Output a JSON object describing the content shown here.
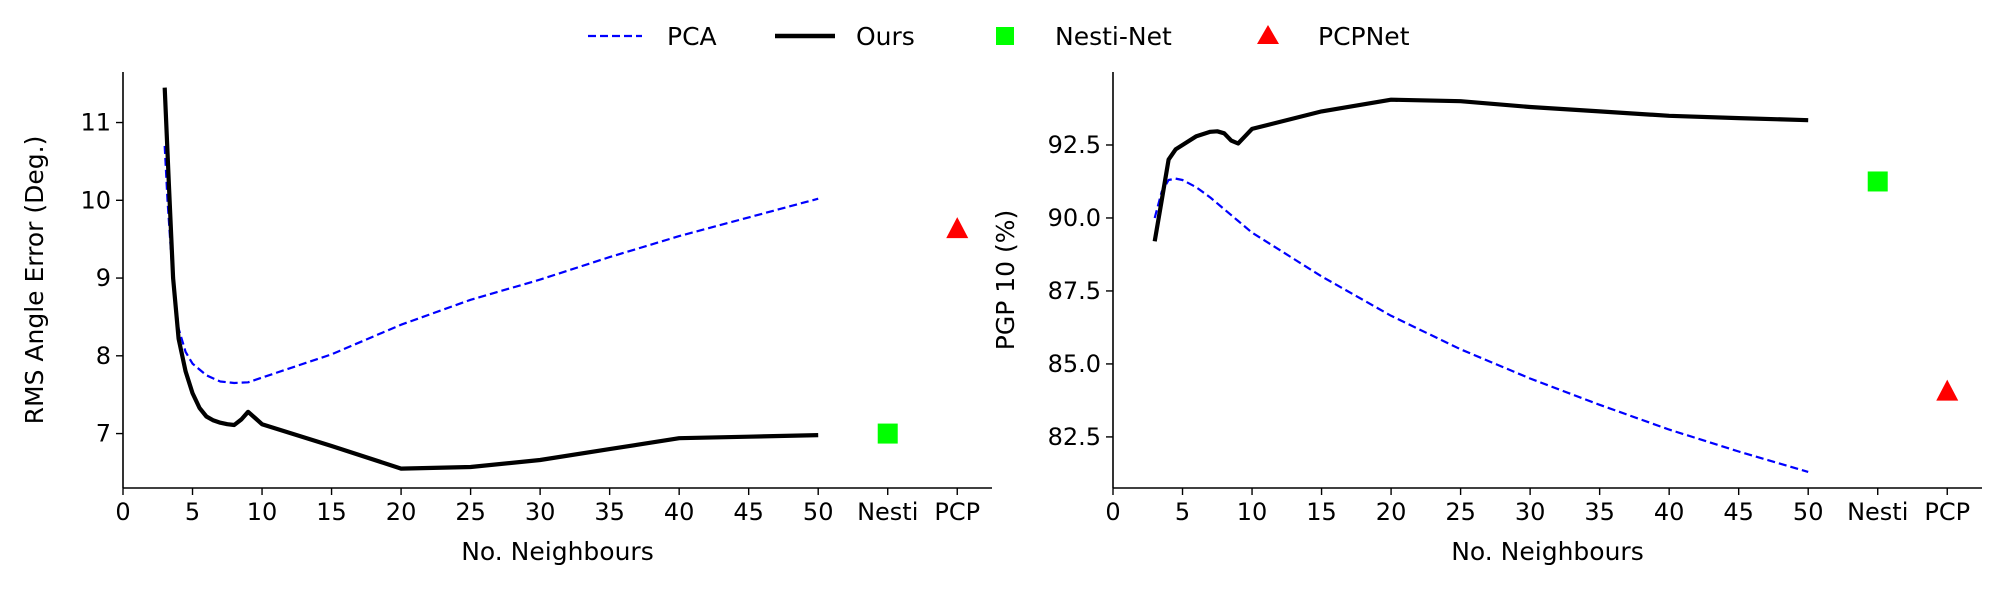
{
  "legend": {
    "placement": "top-center",
    "entries": [
      {
        "label": "PCA",
        "marker": "dashed-line",
        "color": "#0000ff"
      },
      {
        "label": "Ours",
        "marker": "solid-line",
        "color": "#000000"
      },
      {
        "label": "Nesti-Net",
        "marker": "square",
        "color": "#00ff00"
      },
      {
        "label": "PCPNet",
        "marker": "triangle",
        "color": "#ff0000"
      }
    ]
  },
  "chart_data": [
    {
      "type": "line",
      "xlabel": "No. Neighbours",
      "ylabel": "RMS Angle Error (Deg.)",
      "xlim": [
        0,
        62.5
      ],
      "ylim": [
        6.3,
        11.65
      ],
      "xticks": [
        0,
        5,
        10,
        15,
        20,
        25,
        30,
        35,
        40,
        45,
        50
      ],
      "xtick_labels": [
        "0",
        "5",
        "10",
        "15",
        "20",
        "25",
        "30",
        "35",
        "40",
        "45",
        "50"
      ],
      "extra_ticks": [
        {
          "x": 55,
          "label": "Nesti"
        },
        {
          "x": 60,
          "label": "PCP"
        }
      ],
      "yticks": [
        7,
        8,
        9,
        10,
        11
      ],
      "ytick_labels": [
        "7",
        "8",
        "9",
        "10",
        "11"
      ],
      "grid": false,
      "series": [
        {
          "name": "PCA",
          "style": "dashed",
          "color": "#0000ff",
          "x": [
            3,
            3.2,
            3.5,
            4,
            4.5,
            5,
            6,
            7,
            8,
            9,
            10,
            15,
            20,
            25,
            30,
            35,
            40,
            45,
            50
          ],
          "y": [
            10.7,
            10.0,
            9.2,
            8.35,
            8.05,
            7.9,
            7.75,
            7.67,
            7.65,
            7.66,
            7.72,
            8.02,
            8.4,
            8.72,
            8.98,
            9.27,
            9.54,
            9.78,
            10.02
          ]
        },
        {
          "name": "Ours",
          "style": "solid",
          "color": "#000000",
          "x": [
            3,
            3.3,
            3.6,
            4,
            4.5,
            5,
            5.5,
            6,
            6.5,
            7,
            7.5,
            8,
            8.5,
            9,
            9.5,
            10,
            15,
            20,
            25,
            30,
            35,
            40,
            45,
            50
          ],
          "y": [
            11.45,
            10.2,
            9.0,
            8.22,
            7.8,
            7.52,
            7.33,
            7.22,
            7.17,
            7.14,
            7.12,
            7.11,
            7.18,
            7.28,
            7.2,
            7.12,
            6.84,
            6.55,
            6.57,
            6.66,
            6.8,
            6.94,
            6.96,
            6.98
          ]
        }
      ],
      "points": [
        {
          "name": "Nesti-Net",
          "x": 55,
          "y": 7.0,
          "marker": "square",
          "color": "#00ff00"
        },
        {
          "name": "PCPNet",
          "x": 60,
          "y": 9.63,
          "marker": "triangle",
          "color": "#ff0000"
        }
      ]
    },
    {
      "type": "line",
      "xlabel": "No. Neighbours",
      "ylabel": "PGP 10 (%)",
      "xlim": [
        0,
        62.5
      ],
      "ylim": [
        80.75,
        95.0
      ],
      "xticks": [
        0,
        5,
        10,
        15,
        20,
        25,
        30,
        35,
        40,
        45,
        50
      ],
      "xtick_labels": [
        "0",
        "5",
        "10",
        "15",
        "20",
        "25",
        "30",
        "35",
        "40",
        "45",
        "50"
      ],
      "extra_ticks": [
        {
          "x": 55,
          "label": "Nesti"
        },
        {
          "x": 60,
          "label": "PCP"
        }
      ],
      "yticks": [
        82.5,
        85.0,
        87.5,
        90.0,
        92.5
      ],
      "ytick_labels": [
        "82.5",
        "85.0",
        "87.5",
        "90.0",
        "92.5"
      ],
      "grid": false,
      "series": [
        {
          "name": "PCA",
          "style": "dashed",
          "color": "#0000ff",
          "x": [
            3,
            3.5,
            4,
            4.5,
            5,
            6,
            7,
            8,
            9,
            10,
            15,
            20,
            25,
            30,
            35,
            40,
            45,
            50
          ],
          "y": [
            90.0,
            90.9,
            91.3,
            91.35,
            91.3,
            91.05,
            90.7,
            90.3,
            89.9,
            89.5,
            88.0,
            86.65,
            85.5,
            84.5,
            83.6,
            82.75,
            82.0,
            81.3
          ]
        },
        {
          "name": "Ours",
          "style": "solid",
          "color": "#000000",
          "x": [
            3,
            3.5,
            4,
            4.5,
            5,
            6,
            7,
            7.5,
            8,
            8.5,
            9,
            9.5,
            10,
            15,
            20,
            25,
            30,
            35,
            40,
            45,
            50
          ],
          "y": [
            89.2,
            90.6,
            92.0,
            92.35,
            92.5,
            92.8,
            92.95,
            92.97,
            92.9,
            92.65,
            92.55,
            92.8,
            93.05,
            93.65,
            94.05,
            94.0,
            93.8,
            93.65,
            93.5,
            93.42,
            93.35
          ]
        }
      ],
      "points": [
        {
          "name": "Nesti-Net",
          "x": 55,
          "y": 91.25,
          "marker": "square",
          "color": "#00ff00"
        },
        {
          "name": "PCPNet",
          "x": 60,
          "y": 84.05,
          "marker": "triangle",
          "color": "#ff0000"
        }
      ]
    }
  ]
}
